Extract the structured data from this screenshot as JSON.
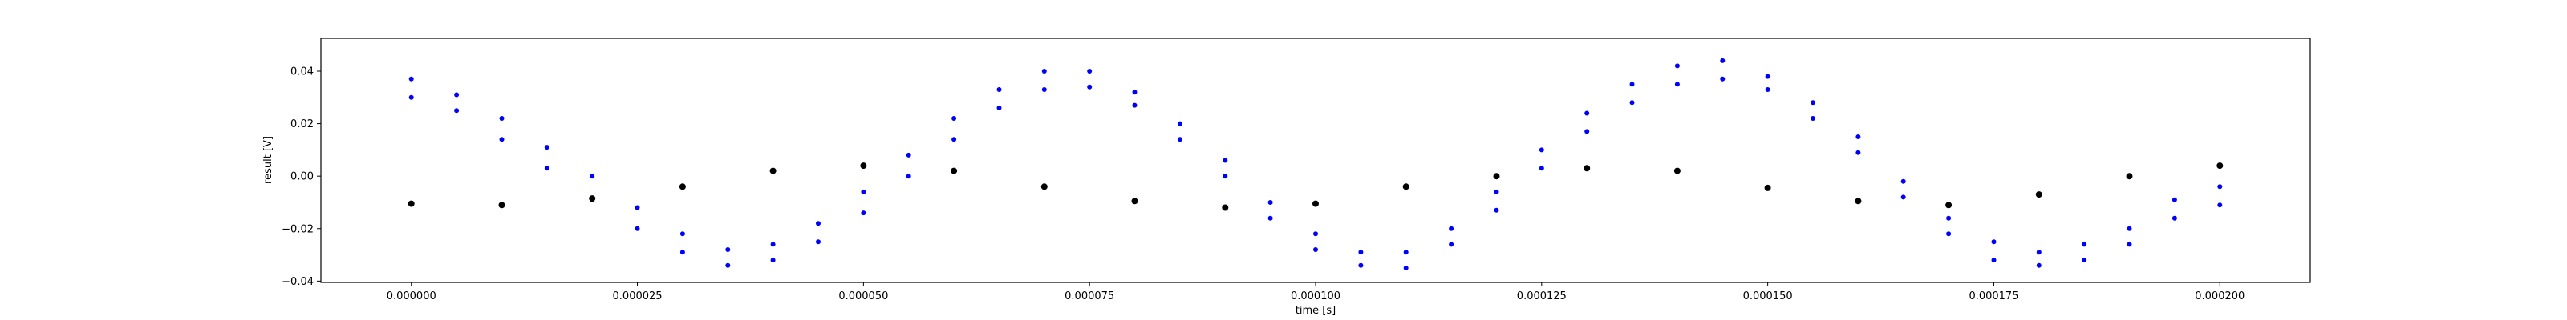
{
  "chart_data": {
    "type": "scatter",
    "title": "",
    "xlabel": "time [s]",
    "ylabel": "result [V]",
    "xlim": [
      -1e-05,
      0.00021
    ],
    "ylim": [
      -0.0405,
      0.0525
    ],
    "grid": false,
    "x_ticks": [
      {
        "value": 0.0,
        "label": "0.000000"
      },
      {
        "value": 2.5e-05,
        "label": "0.000025"
      },
      {
        "value": 5e-05,
        "label": "0.000050"
      },
      {
        "value": 7.5e-05,
        "label": "0.000075"
      },
      {
        "value": 0.0001,
        "label": "0.000100"
      },
      {
        "value": 0.000125,
        "label": "0.000125"
      },
      {
        "value": 0.00015,
        "label": "0.000150"
      },
      {
        "value": 0.000175,
        "label": "0.000175"
      },
      {
        "value": 0.0002,
        "label": "0.000200"
      }
    ],
    "y_ticks": [
      {
        "value": -0.04,
        "label": "−0.04"
      },
      {
        "value": -0.02,
        "label": "−0.02"
      },
      {
        "value": 0.0,
        "label": "0.00"
      },
      {
        "value": 0.02,
        "label": "0.02"
      },
      {
        "value": 0.04,
        "label": "0.04"
      }
    ],
    "series": [
      {
        "color": "#0000ff",
        "marker": "dot",
        "x": [
          0.0,
          0.0,
          5e-06,
          5e-06,
          1e-05,
          1e-05,
          1.5e-05,
          1.5e-05,
          2e-05,
          2e-05,
          2.5e-05,
          2.5e-05,
          3e-05,
          3e-05,
          3.5e-05,
          3.5e-05,
          4e-05,
          4e-05,
          4.5e-05,
          4.5e-05,
          5e-05,
          5e-05,
          5.5e-05,
          5.5e-05,
          6e-05,
          6e-05,
          6.5e-05,
          6.5e-05,
          7e-05,
          7e-05,
          7.5e-05,
          7.5e-05,
          8e-05,
          8e-05,
          8.5e-05,
          8.5e-05,
          9e-05,
          9e-05,
          9.5e-05,
          9.5e-05,
          0.0001,
          0.0001,
          0.000105,
          0.000105,
          0.00011,
          0.00011,
          0.000115,
          0.000115,
          0.00012,
          0.00012,
          0.000125,
          0.000125,
          0.00013,
          0.00013,
          0.000135,
          0.000135,
          0.00014,
          0.00014,
          0.000145,
          0.000145,
          0.00015,
          0.00015,
          0.000155,
          0.000155,
          0.00016,
          0.00016,
          0.000165,
          0.000165,
          0.00017,
          0.00017,
          0.000175,
          0.000175,
          0.00018,
          0.00018,
          0.000185,
          0.000185,
          0.00019,
          0.00019,
          0.000195,
          0.000195,
          0.0002,
          0.0002
        ],
        "y": [
          0.037,
          0.03,
          0.031,
          0.025,
          0.022,
          0.014,
          0.011,
          0.003,
          0.0,
          -0.009,
          -0.012,
          -0.02,
          -0.022,
          -0.029,
          -0.028,
          -0.034,
          -0.026,
          -0.032,
          -0.018,
          -0.025,
          -0.006,
          -0.014,
          0.008,
          0.0,
          0.022,
          0.014,
          0.033,
          0.026,
          0.04,
          0.033,
          0.04,
          0.034,
          0.032,
          0.027,
          0.02,
          0.014,
          0.006,
          0.0,
          -0.01,
          -0.016,
          -0.022,
          -0.028,
          -0.029,
          -0.034,
          -0.029,
          -0.035,
          -0.02,
          -0.026,
          -0.006,
          -0.013,
          0.01,
          0.003,
          0.024,
          0.017,
          0.035,
          0.028,
          0.042,
          0.035,
          0.044,
          0.037,
          0.038,
          0.033,
          0.028,
          0.022,
          0.015,
          0.009,
          -0.002,
          -0.008,
          -0.016,
          -0.022,
          -0.025,
          -0.032,
          -0.029,
          -0.034,
          -0.026,
          -0.032,
          -0.02,
          -0.026,
          -0.009,
          -0.016,
          -0.004,
          -0.011
        ]
      },
      {
        "color": "#000000",
        "marker": "dot",
        "x": [
          0.0,
          1e-05,
          2e-05,
          3e-05,
          4e-05,
          5e-05,
          6e-05,
          7e-05,
          8e-05,
          9e-05,
          0.0001,
          0.00011,
          0.00012,
          0.00013,
          0.00014,
          0.00015,
          0.00016,
          0.00017,
          0.00018,
          0.00019,
          0.0002
        ],
        "y": [
          -0.0105,
          -0.011,
          -0.0085,
          -0.004,
          0.002,
          0.004,
          0.002,
          -0.004,
          -0.0095,
          -0.012,
          -0.0105,
          -0.004,
          0.0,
          0.003,
          0.002,
          -0.0045,
          -0.0095,
          -0.011,
          -0.007,
          0.0,
          0.004
        ]
      }
    ]
  }
}
